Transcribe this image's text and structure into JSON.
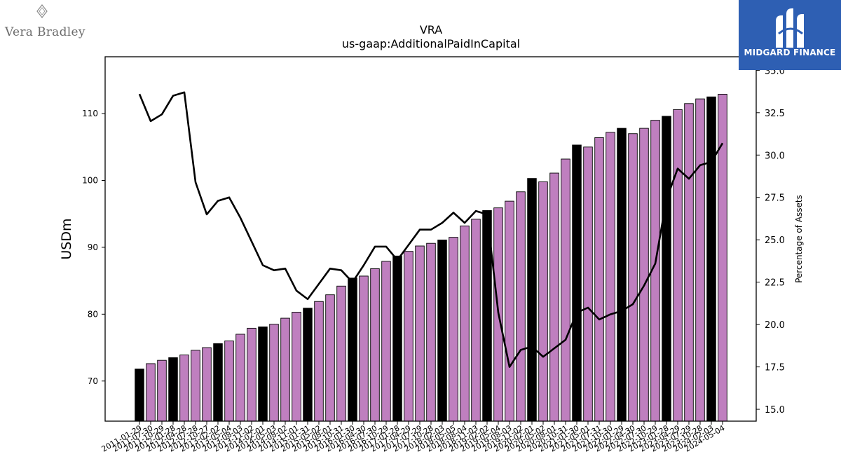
{
  "logos": {
    "left_brand": "Vera Bradley",
    "left_mark_text": "VB",
    "right_brand": "MIDGARD FINANCE",
    "right_bg": "#2e5fb3"
  },
  "chart_data": {
    "type": "bar",
    "title": "VRA",
    "subtitle": "us-gaap:AdditionalPaidInCapital",
    "ylabel": "USDm",
    "y2label": "Percentage of Assets",
    "ylim": [
      64,
      118.5
    ],
    "y2lim": [
      14.3,
      35.8
    ],
    "yticks": [
      70,
      80,
      90,
      100,
      110
    ],
    "y2ticks": [
      "15.0",
      "17.5",
      "20.0",
      "22.5",
      "25.0",
      "27.5",
      "30.0",
      "32.5",
      "35.0"
    ],
    "colors": {
      "bar_default": "#bf7fbf",
      "bar_highlight": "#000000",
      "line": "#000000"
    },
    "categories": [
      "2011-01-29",
      "2011-07-30",
      "2011-10-29",
      "2012-01-28",
      "2012-04-28",
      "2012-07-28",
      "2012-10-27",
      "2013-02-02",
      "2013-05-04",
      "2013-08-03",
      "2013-11-02",
      "2014-02-01",
      "2014-05-03",
      "2014-08-02",
      "2014-11-01",
      "2015-01-31",
      "2015-05-02",
      "2015-08-01",
      "2015-10-31",
      "2016-01-30",
      "2016-04-30",
      "2016-07-30",
      "2016-10-29",
      "2017-01-28",
      "2017-04-29",
      "2017-07-29",
      "2017-10-28",
      "2018-02-03",
      "2018-05-05",
      "2018-08-04",
      "2018-11-03",
      "2019-02-02",
      "2019-05-04",
      "2019-08-03",
      "2019-11-02",
      "2020-02-01",
      "2020-05-02",
      "2020-08-01",
      "2020-10-31",
      "2021-01-30",
      "2021-05-01",
      "2021-07-31",
      "2021-10-30",
      "2022-01-29",
      "2022-04-30",
      "2022-07-30",
      "2022-10-29",
      "2023-01-28",
      "2023-04-29",
      "2023-07-29",
      "2023-10-28",
      "2024-02-03",
      "2024-05-04"
    ],
    "series": [
      {
        "type": "bar",
        "axis": "left",
        "values": [
          71.8,
          72.6,
          73.1,
          73.5,
          73.9,
          74.6,
          75.0,
          75.6,
          76.0,
          77.0,
          77.9,
          78.1,
          78.5,
          79.4,
          80.3,
          80.9,
          81.9,
          82.9,
          84.2,
          85.4,
          85.7,
          86.8,
          87.9,
          88.7,
          89.4,
          90.2,
          90.6,
          91.1,
          91.5,
          93.2,
          94.2,
          95.5,
          95.9,
          96.9,
          98.3,
          100.3,
          99.8,
          101.1,
          103.2,
          105.3,
          105.0,
          106.4,
          107.2,
          107.8,
          107.0,
          107.8,
          109.0,
          109.6,
          110.6,
          111.5,
          112.2,
          112.5,
          112.9
        ]
      },
      {
        "type": "line",
        "axis": "right",
        "values": [
          33.6,
          32.0,
          32.4,
          33.5,
          33.7,
          28.4,
          26.5,
          27.3,
          27.5,
          26.3,
          24.9,
          23.5,
          23.2,
          23.3,
          22.0,
          21.5,
          22.4,
          23.3,
          23.2,
          22.5,
          23.5,
          24.6,
          24.6,
          23.8,
          24.7,
          25.6,
          25.6,
          26.0,
          26.6,
          26.0,
          26.7,
          26.5,
          20.7,
          17.5,
          18.5,
          18.7,
          18.1,
          18.6,
          19.1,
          20.7,
          21.0,
          20.3,
          20.6,
          20.8,
          21.2,
          22.3,
          23.6,
          27.4,
          29.2,
          28.6,
          29.4,
          29.6,
          30.7
        ]
      }
    ],
    "highlight_indices": [
      0,
      3,
      7,
      11,
      15,
      19,
      23,
      27,
      31,
      35,
      39,
      43,
      47,
      51
    ]
  }
}
